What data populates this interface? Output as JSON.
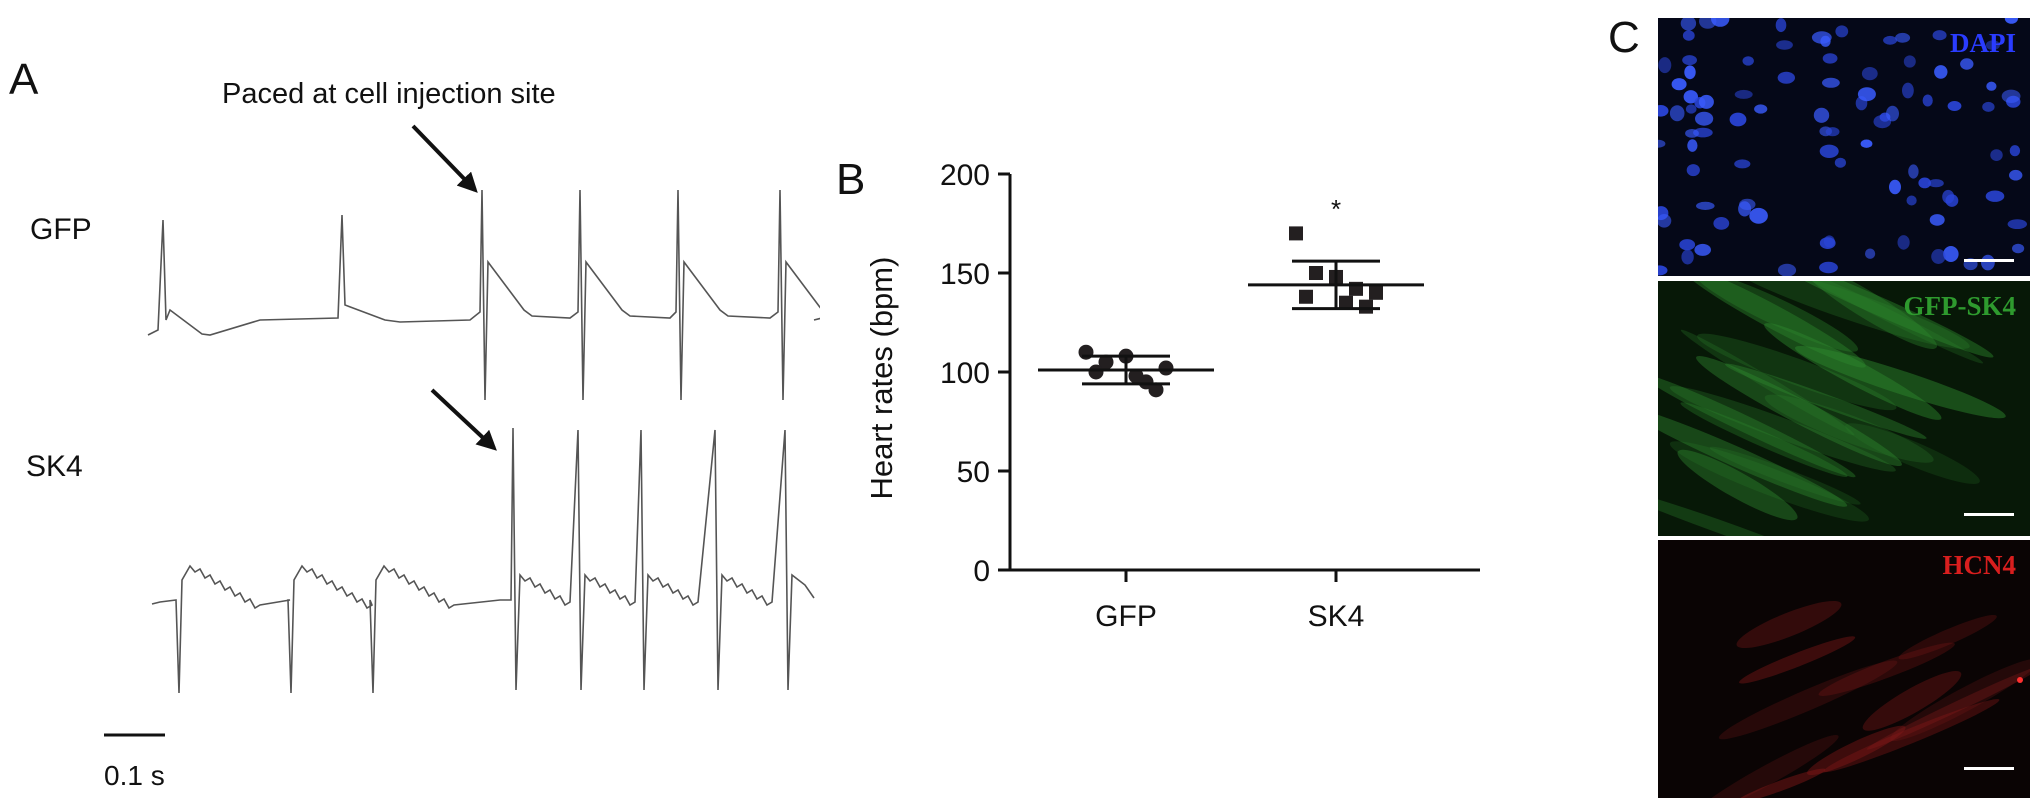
{
  "panel_a": {
    "letter": "A",
    "annotation": "Paced at cell injection site",
    "traces": [
      {
        "label": "GFP"
      },
      {
        "label": "SK4"
      }
    ],
    "scale_bar_label": "0.1 s"
  },
  "panel_b": {
    "letter": "B",
    "significance_marker": "*"
  },
  "panel_c": {
    "letter": "C",
    "images": [
      {
        "stain": "DAPI",
        "color": "#2a3cff"
      },
      {
        "stain": "GFP-SK4",
        "color": "#2e9a2e"
      },
      {
        "stain": "HCN4",
        "color": "#d81e1e"
      }
    ]
  },
  "chart_data": {
    "type": "scatter",
    "ylabel": "Heart rates (bpm)",
    "xlabel": "",
    "ylim": [
      0,
      200
    ],
    "yticks": [
      "0",
      "50",
      "100",
      "150",
      "200"
    ],
    "categories": [
      "GFP",
      "SK4"
    ],
    "series": [
      {
        "category": "GFP",
        "marker": "circle",
        "values": [
          110,
          105,
          108,
          95,
          102,
          100,
          98,
          91
        ],
        "mean": 101,
        "sd": 7
      },
      {
        "category": "SK4",
        "marker": "square",
        "values": [
          170,
          150,
          148,
          142,
          140,
          138,
          135,
          133
        ],
        "mean": 144,
        "sd": 12
      }
    ]
  }
}
